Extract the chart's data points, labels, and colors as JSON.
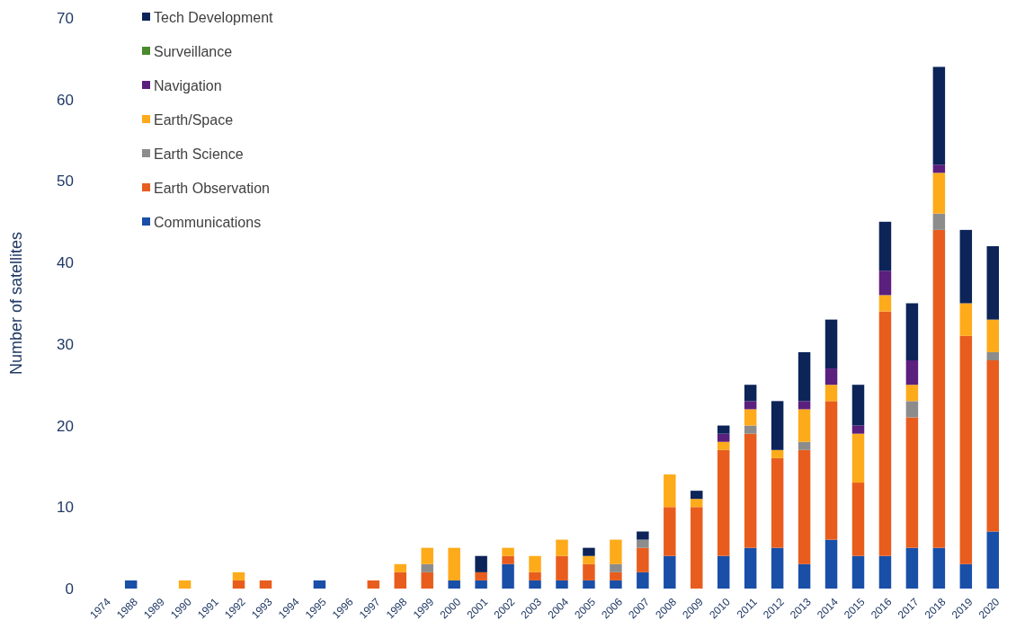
{
  "chart_data": {
    "type": "bar",
    "stacked": true,
    "ylabel": "Number of satellites",
    "categories": [
      "1974",
      "1988",
      "1989",
      "1990",
      "1991",
      "1992",
      "1993",
      "1994",
      "1995",
      "1996",
      "1997",
      "1998",
      "1999",
      "2000",
      "2001",
      "2002",
      "2003",
      "2004",
      "2005",
      "2006",
      "2007",
      "2008",
      "2009",
      "2010",
      "2011",
      "2012",
      "2013",
      "2014",
      "2015",
      "2016",
      "2017",
      "2018",
      "2019",
      "2020"
    ],
    "series": [
      {
        "name": "Communications",
        "color": "#1a4fa8",
        "values": [
          0,
          1,
          0,
          0,
          0,
          0,
          0,
          0,
          1,
          0,
          0,
          0,
          0,
          1,
          1,
          3,
          1,
          1,
          1,
          1,
          2,
          4,
          0,
          4,
          5,
          5,
          3,
          6,
          4,
          4,
          5,
          5,
          3,
          7
        ]
      },
      {
        "name": "Earth Observation",
        "color": "#e85d1e",
        "values": [
          0,
          0,
          0,
          0,
          0,
          1,
          1,
          0,
          0,
          0,
          1,
          2,
          2,
          0,
          1,
          1,
          1,
          3,
          2,
          1,
          3,
          6,
          10,
          13,
          14,
          11,
          14,
          17,
          9,
          30,
          16,
          39,
          28,
          21
        ]
      },
      {
        "name": "Earth Science",
        "color": "#8c8c8c",
        "values": [
          0,
          0,
          0,
          0,
          0,
          0,
          0,
          0,
          0,
          0,
          0,
          0,
          1,
          0,
          0,
          0,
          0,
          0,
          0,
          1,
          1,
          0,
          0,
          0,
          1,
          0,
          1,
          0,
          0,
          0,
          2,
          2,
          0,
          1
        ]
      },
      {
        "name": "Earth/Space",
        "color": "#fdab1a",
        "values": [
          0,
          0,
          0,
          1,
          0,
          1,
          0,
          0,
          0,
          0,
          0,
          1,
          2,
          4,
          0,
          1,
          2,
          2,
          1,
          3,
          0,
          4,
          1,
          1,
          2,
          1,
          4,
          2,
          6,
          2,
          2,
          5,
          4,
          4
        ]
      },
      {
        "name": "Navigation",
        "color": "#5b1f7e",
        "values": [
          0,
          0,
          0,
          0,
          0,
          0,
          0,
          0,
          0,
          0,
          0,
          0,
          0,
          0,
          0,
          0,
          0,
          0,
          0,
          0,
          0,
          0,
          0,
          1,
          1,
          0,
          1,
          2,
          1,
          3,
          3,
          1,
          0,
          0
        ]
      },
      {
        "name": "Surveillance",
        "color": "#4a8a2a",
        "values": [
          0,
          0,
          0,
          0,
          0,
          0,
          0,
          0,
          0,
          0,
          0,
          0,
          0,
          0,
          0,
          0,
          0,
          0,
          0,
          0,
          0,
          0,
          0,
          0,
          0,
          0,
          0,
          0,
          0,
          0,
          0,
          0,
          0,
          0
        ]
      },
      {
        "name": "Tech Development",
        "color": "#0c2458",
        "values": [
          0,
          0,
          0,
          0,
          0,
          0,
          0,
          0,
          0,
          0,
          0,
          0,
          0,
          0,
          2,
          0,
          0,
          0,
          1,
          0,
          1,
          0,
          1,
          1,
          2,
          6,
          6,
          6,
          5,
          6,
          7,
          12,
          9,
          9
        ]
      }
    ],
    "ylim": [
      0,
      70
    ],
    "yticks": [
      0,
      10,
      20,
      30,
      40,
      50,
      60,
      70
    ],
    "grid": false,
    "legend": "top left"
  }
}
